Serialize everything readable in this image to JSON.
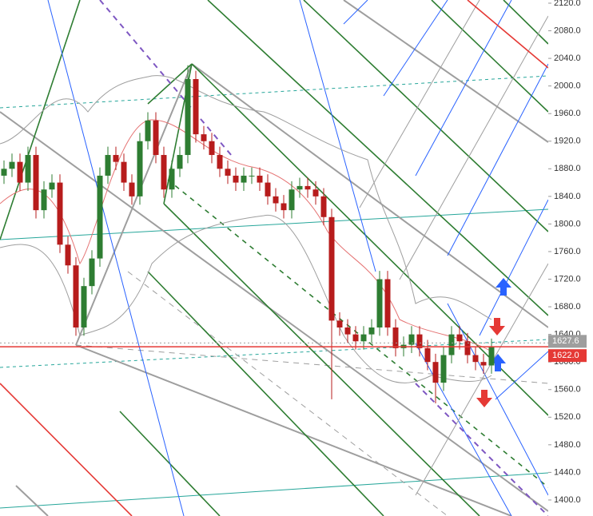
{
  "chart_data": {
    "type": "candlestick",
    "up_color": "#2e7d32",
    "down_color": "#b71c1c",
    "candles": [
      [
        1870,
        1892,
        1858,
        1880
      ],
      [
        1880,
        1902,
        1868,
        1890
      ],
      [
        1890,
        1902,
        1848,
        1860
      ],
      [
        1860,
        1912,
        1848,
        1900
      ],
      [
        1900,
        1912,
        1808,
        1820
      ],
      [
        1820,
        1862,
        1808,
        1850
      ],
      [
        1850,
        1872,
        1838,
        1860
      ],
      [
        1860,
        1872,
        1758,
        1770
      ],
      [
        1770,
        1782,
        1728,
        1740
      ],
      [
        1740,
        1752,
        1638,
        1650
      ],
      [
        1650,
        1722,
        1638,
        1710
      ],
      [
        1710,
        1762,
        1698,
        1750
      ],
      [
        1750,
        1882,
        1738,
        1870
      ],
      [
        1870,
        1912,
        1858,
        1900
      ],
      [
        1900,
        1912,
        1878,
        1890
      ],
      [
        1890,
        1902,
        1848,
        1860
      ],
      [
        1860,
        1872,
        1828,
        1840
      ],
      [
        1840,
        1932,
        1828,
        1920
      ],
      [
        1920,
        1962,
        1908,
        1950
      ],
      [
        1950,
        1962,
        1888,
        1900
      ],
      [
        1900,
        1912,
        1838,
        1850
      ],
      [
        1850,
        1892,
        1838,
        1880
      ],
      [
        1880,
        1912,
        1868,
        1900
      ],
      [
        1900,
        2030,
        1888,
        2010
      ],
      [
        2010,
        2022,
        1918,
        1930
      ],
      [
        1930,
        1942,
        1908,
        1920
      ],
      [
        1920,
        1932,
        1888,
        1900
      ],
      [
        1900,
        1912,
        1868,
        1880
      ],
      [
        1880,
        1892,
        1858,
        1870
      ],
      [
        1870,
        1882,
        1848,
        1860
      ],
      [
        1860,
        1882,
        1848,
        1870
      ],
      [
        1870,
        1882,
        1858,
        1870
      ],
      [
        1870,
        1882,
        1848,
        1860
      ],
      [
        1860,
        1872,
        1828,
        1840
      ],
      [
        1840,
        1852,
        1818,
        1830
      ],
      [
        1830,
        1842,
        1808,
        1820
      ],
      [
        1820,
        1862,
        1808,
        1850
      ],
      [
        1850,
        1867,
        1838,
        1855
      ],
      [
        1855,
        1867,
        1838,
        1850
      ],
      [
        1850,
        1862,
        1828,
        1840
      ],
      [
        1840,
        1852,
        1798,
        1810
      ],
      [
        1810,
        1822,
        1546,
        1660
      ],
      [
        1660,
        1672,
        1638,
        1650
      ],
      [
        1650,
        1662,
        1628,
        1640
      ],
      [
        1640,
        1652,
        1618,
        1630
      ],
      [
        1630,
        1652,
        1618,
        1640
      ],
      [
        1640,
        1662,
        1628,
        1650
      ],
      [
        1650,
        1732,
        1638,
        1720
      ],
      [
        1720,
        1732,
        1638,
        1650
      ],
      [
        1650,
        1662,
        1608,
        1620
      ],
      [
        1620,
        1637,
        1608,
        1625
      ],
      [
        1625,
        1652,
        1613,
        1640
      ],
      [
        1640,
        1652,
        1608,
        1620
      ],
      [
        1620,
        1632,
        1588,
        1600
      ],
      [
        1600,
        1612,
        1540,
        1570
      ],
      [
        1570,
        1622,
        1558,
        1610
      ],
      [
        1610,
        1652,
        1598,
        1640
      ],
      [
        1640,
        1652,
        1618,
        1630
      ],
      [
        1630,
        1642,
        1598,
        1610
      ],
      [
        1610,
        1622,
        1588,
        1600
      ],
      [
        1600,
        1612,
        1583,
        1595
      ],
      [
        1595,
        1634,
        1583,
        1622
      ]
    ],
    "ylim": [
      1376.8,
      2124.6
    ],
    "yticks": [
      {
        "value": 2120,
        "label": "2120.0"
      },
      {
        "value": 2080,
        "label": "2080.0"
      },
      {
        "value": 2040,
        "label": "2040.0"
      },
      {
        "value": 2000,
        "label": "2000.0"
      },
      {
        "value": 1960,
        "label": "1960.0"
      },
      {
        "value": 1920,
        "label": "1920.0"
      },
      {
        "value": 1880,
        "label": "1880.0"
      },
      {
        "value": 1840,
        "label": "1840.0"
      },
      {
        "value": 1800,
        "label": "1800.0"
      },
      {
        "value": 1760,
        "label": "1760.0"
      },
      {
        "value": 1720,
        "label": "1720.0"
      },
      {
        "value": 1680,
        "label": "1680.0"
      },
      {
        "value": 1640,
        "label": "1640.0"
      },
      {
        "value": 1600,
        "label": "1600.0"
      },
      {
        "value": 1560,
        "label": "1560.0"
      },
      {
        "value": 1520,
        "label": "1520.0"
      },
      {
        "value": 1480,
        "label": "1480.0"
      },
      {
        "value": 1440,
        "label": "1440.0"
      },
      {
        "value": 1400,
        "label": "1400.0"
      }
    ],
    "price_labels": [
      {
        "value": 1627.6,
        "label": "1627.6",
        "color": "#9e9e9e"
      },
      {
        "value": 1622.0,
        "label": "1622.0",
        "color": "#e53935"
      }
    ]
  }
}
